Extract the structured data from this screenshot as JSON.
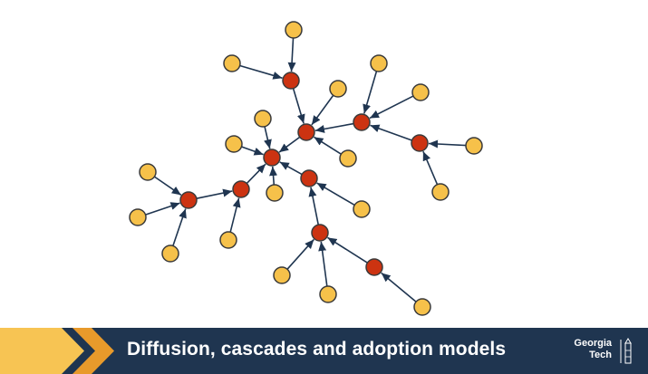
{
  "slide": {
    "title": "Diffusion, cascades and adoption models"
  },
  "logo": {
    "line1": "Georgia",
    "line2": "Tech",
    "icon": "tech-tower-icon"
  },
  "colors": {
    "adopted_node": "#cc3311",
    "inactive_node": "#f6c14a",
    "edge": "#1f3550",
    "footer_bg": "#1f3550",
    "chevron_light": "#f7c453",
    "chevron_dark": "#e89a2b"
  }
}
